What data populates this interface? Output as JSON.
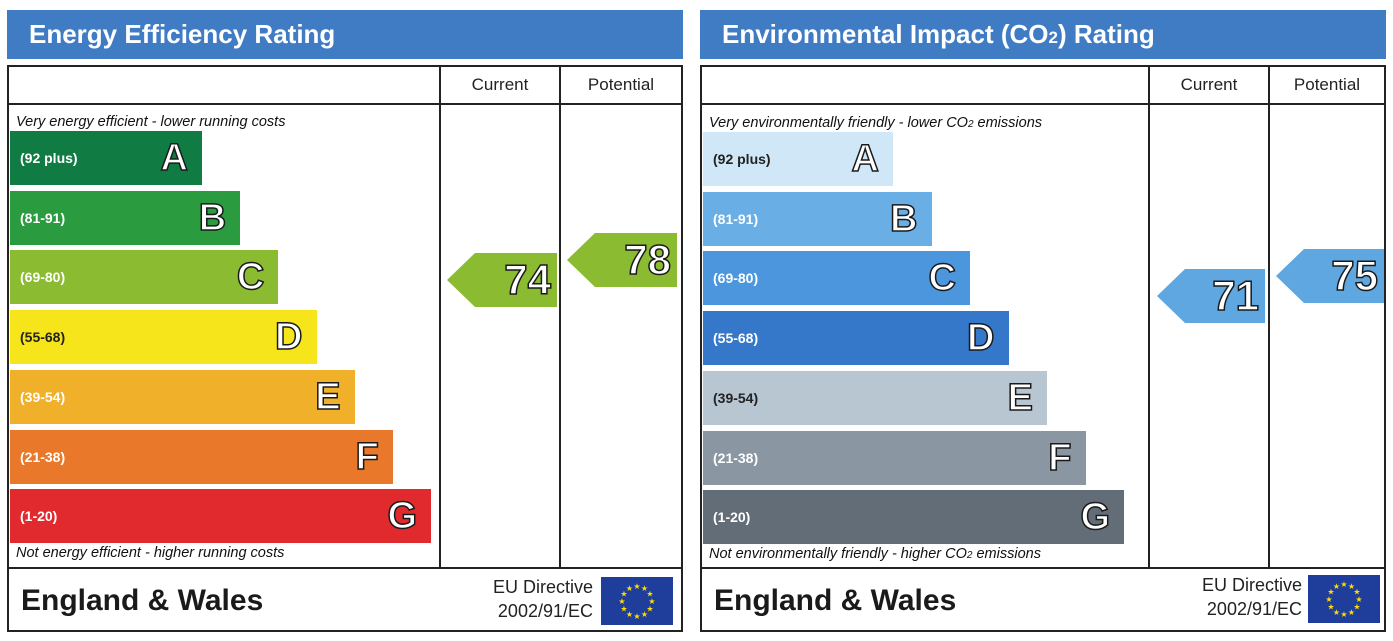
{
  "chart_data": [
    {
      "type": "bar",
      "title": "Energy Efficiency Rating",
      "columns": [
        "Current",
        "Potential"
      ],
      "top_note": "Very energy efficient - lower running costs",
      "bottom_note": "Not energy efficient - higher running costs",
      "bands": [
        {
          "letter": "A",
          "range": "(92 plus)",
          "min": 92,
          "max": 100,
          "color": "#107c44"
        },
        {
          "letter": "B",
          "range": "(81-91)",
          "min": 81,
          "max": 91,
          "color": "#2a9b3f"
        },
        {
          "letter": "C",
          "range": "(69-80)",
          "min": 69,
          "max": 80,
          "color": "#8bbb30"
        },
        {
          "letter": "D",
          "range": "(55-68)",
          "min": 55,
          "max": 68,
          "color": "#f6e51b"
        },
        {
          "letter": "E",
          "range": "(39-54)",
          "min": 39,
          "max": 54,
          "color": "#f0b02a"
        },
        {
          "letter": "F",
          "range": "(21-38)",
          "min": 21,
          "max": 38,
          "color": "#e9782a"
        },
        {
          "letter": "G",
          "range": "(1-20)",
          "min": 1,
          "max": 20,
          "color": "#e02a2e"
        }
      ],
      "current": {
        "value": 74,
        "display": "74",
        "band": "C",
        "color": "#8bbb30"
      },
      "potential": {
        "value": 78,
        "display": "78",
        "band": "C",
        "color": "#8bbb30"
      },
      "region": "England & Wales",
      "directive_line1": "EU Directive",
      "directive_line2": "2002/91/EC"
    },
    {
      "type": "bar",
      "title_main": "Environmental Impact (CO",
      "title_sub": "2",
      "title_end": ") Rating",
      "columns": [
        "Current",
        "Potential"
      ],
      "top_note_main": "Very environmentally friendly - lower CO",
      "top_note_sub": "2",
      "top_note_end": " emissions",
      "bottom_note_main": "Not environmentally friendly - higher CO",
      "bottom_note_sub": "2",
      "bottom_note_end": " emissions",
      "bands": [
        {
          "letter": "A",
          "range": "(92 plus)",
          "min": 92,
          "max": 100,
          "color": "#cfe7f7"
        },
        {
          "letter": "B",
          "range": "(81-91)",
          "min": 81,
          "max": 91,
          "color": "#6aaee6"
        },
        {
          "letter": "C",
          "range": "(69-80)",
          "min": 69,
          "max": 80,
          "color": "#4b96dd"
        },
        {
          "letter": "D",
          "range": "(55-68)",
          "min": 55,
          "max": 68,
          "color": "#3577c9"
        },
        {
          "letter": "E",
          "range": "(39-54)",
          "min": 39,
          "max": 54,
          "color": "#b8c6d2"
        },
        {
          "letter": "F",
          "range": "(21-38)",
          "min": 21,
          "max": 38,
          "color": "#8a97a3"
        },
        {
          "letter": "G",
          "range": "(1-20)",
          "min": 1,
          "max": 20,
          "color": "#636d77"
        }
      ],
      "current": {
        "value": 71,
        "display": "71",
        "band": "C",
        "color": "#5ea7e0"
      },
      "potential": {
        "value": 75,
        "display": "75",
        "band": "C",
        "color": "#5ea7e0"
      },
      "region": "England & Wales",
      "directive_line1": "EU Directive",
      "directive_line2": "2002/91/EC"
    }
  ]
}
